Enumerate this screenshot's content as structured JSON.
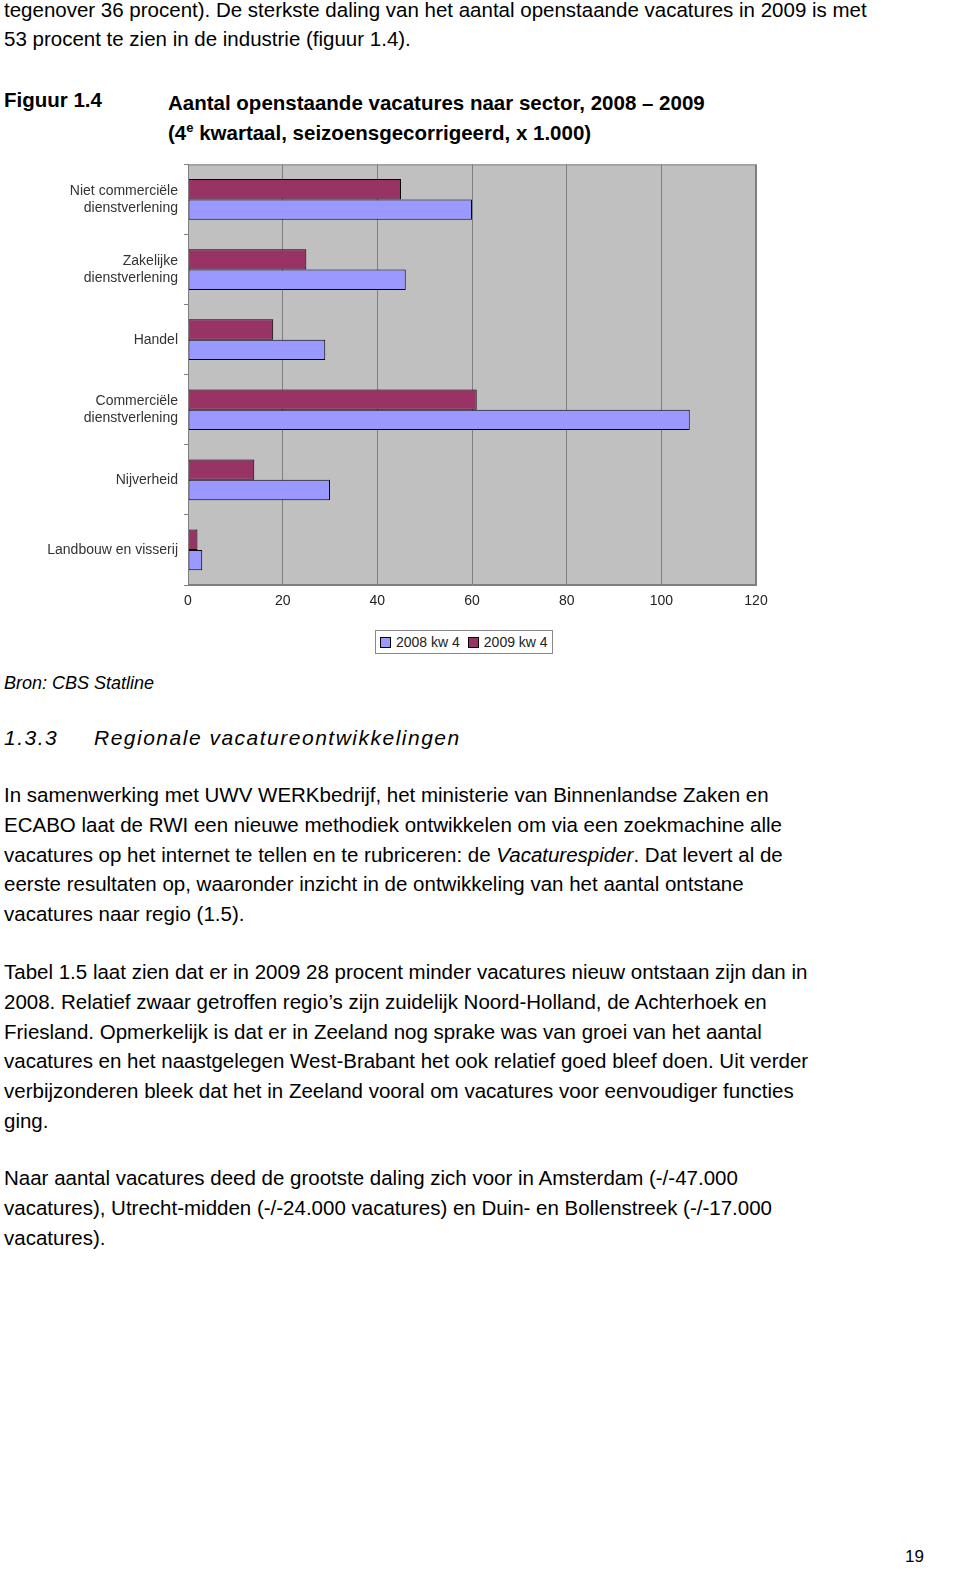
{
  "intro_lines": [
    "tegenover 36 procent). De sterkste daling van het aantal openstaande vacatures in 2009 is met",
    "53 procent te zien in de industrie (figuur 1.4)."
  ],
  "figure": {
    "label": "Figuur 1.4",
    "title_line1": "Aantal openstaande vacatures naar sector, 2008 – 2009",
    "title_line2": [
      "(4",
      "e",
      " kwartaal, seizoensgecorrigeerd, x 1.000)"
    ]
  },
  "chart_data": {
    "type": "bar",
    "orientation": "horizontal",
    "grid": true,
    "legend": "bottom",
    "categories": [
      [
        "Niet commerciële",
        "dienstverlening"
      ],
      [
        "Zakelijke",
        "dienstverlening"
      ],
      "Handel",
      [
        "Commerciële",
        "dienstverlening"
      ],
      "Nijverheid",
      "Landbouw en visserij"
    ],
    "series": [
      {
        "name": "2008 kw 4",
        "color": "#9999ff",
        "values": [
          60,
          46,
          29,
          106,
          30,
          3
        ]
      },
      {
        "name": "2009 kw 4",
        "color": "#993366",
        "values": [
          45,
          25,
          18,
          61,
          14,
          2
        ]
      }
    ],
    "xlim": [
      0,
      120
    ],
    "xticks": [
      0,
      20,
      40,
      60,
      80,
      100,
      120
    ]
  },
  "source": "Bron: CBS Statline",
  "section": {
    "number": "1.3.3",
    "title": "Regionale vacatureontwikkelingen"
  },
  "paragraphs": [
    {
      "lines": [
        "In samenwerking met UWV WERKbedrijf, het ministerie van Binnenlandse Zaken en",
        "ECABO laat de RWI een nieuwe methodiek ontwikkelen om via een zoekmachine alle",
        "vacatures op het internet te tellen en te rubriceren: de Vacaturespider. Dat levert al de",
        "eerste resultaten op, waaronder inzicht in de ontwikkeling van het aantal ontstane",
        "vacatures naar regio (1.5)."
      ],
      "emphasis": "Vacaturespider"
    },
    {
      "lines": [
        "Tabel 1.5 laat zien dat er in 2009 28 procent minder vacatures nieuw ontstaan zijn dan in",
        "2008. Relatief zwaar getroffen regio’s zijn zuidelijk Noord-Holland, de Achterhoek en",
        "Friesland. Opmerkelijk is dat er in Zeeland nog sprake was van groei van het aantal",
        "vacatures en het naastgelegen West-Brabant het ook relatief goed bleef doen. Uit verder",
        "verbijzonderen bleek dat het in Zeeland vooral om vacatures voor eenvoudiger functies",
        "ging."
      ]
    },
    {
      "lines": [
        "Naar aantal vacatures deed de grootste daling zich voor in Amsterdam (-/-47.000",
        "vacatures), Utrecht-midden (-/-24.000 vacatures) en Duin- en Bollenstreek (-/-17.000",
        "vacatures)."
      ]
    }
  ],
  "page_number": "19"
}
